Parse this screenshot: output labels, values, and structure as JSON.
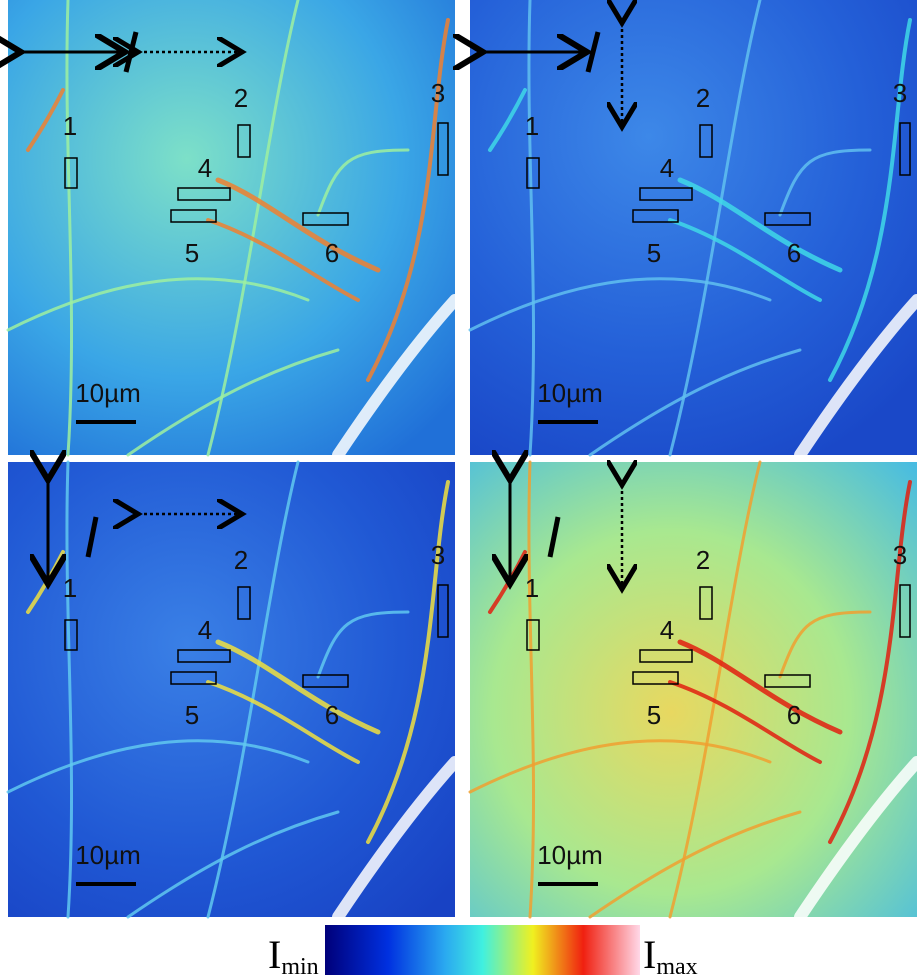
{
  "panels": [
    {
      "labels": [
        "1",
        "2",
        "3",
        "4",
        "5",
        "6"
      ],
      "scale_bar": "10µm"
    },
    {
      "labels": [
        "1",
        "2",
        "3",
        "4",
        "5",
        "6"
      ],
      "scale_bar": "10µm"
    },
    {
      "labels": [
        "1",
        "2",
        "3",
        "4",
        "5",
        "6"
      ],
      "scale_bar": "10µm"
    },
    {
      "labels": [
        "1",
        "2",
        "3",
        "4",
        "5",
        "6"
      ],
      "scale_bar": "10µm"
    }
  ],
  "colorbar": {
    "min_label": {
      "main": "I",
      "sub": "min"
    },
    "max_label": {
      "main": "I",
      "sub": "max"
    }
  }
}
